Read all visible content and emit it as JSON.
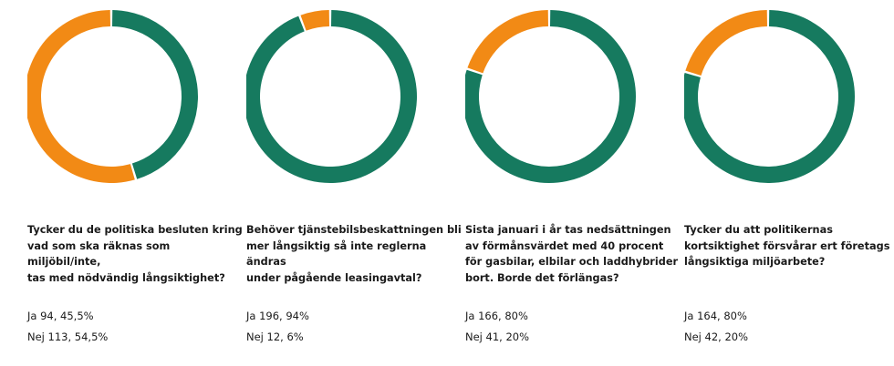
{
  "colors": {
    "ja": "#167a5f",
    "nej": "#f28a15"
  },
  "chart_data": [
    {
      "type": "pie",
      "title": "Tycker du de politiska besluten kring\nvad som ska räknas som miljöbil/inte,\ntas med nödvändig långsiktighet?",
      "labels": [
        "Ja",
        "Nej"
      ],
      "values": [
        94,
        113
      ],
      "percent": [
        45.5,
        54.5
      ],
      "answer_lines": [
        "Ja 94, 45,5%",
        "Nej 113, 54,5%"
      ]
    },
    {
      "type": "pie",
      "title": "Behöver tjänstebilsbeskattningen bli\nmer långsiktig så inte reglerna ändras\nunder pågående leasingavtal?",
      "labels": [
        "Ja",
        "Nej"
      ],
      "values": [
        196,
        12
      ],
      "percent": [
        94,
        6
      ],
      "answer_lines": [
        "Ja 196, 94%",
        "Nej 12, 6%"
      ]
    },
    {
      "type": "pie",
      "title": "Sista januari i år tas nedsättningen\nav förmånsvärdet med 40 procent\nför gasbilar, elbilar och laddhybrider\nbort. Borde det förlängas?",
      "labels": [
        "Ja",
        "Nej"
      ],
      "values": [
        166,
        41
      ],
      "percent": [
        80,
        20
      ],
      "answer_lines": [
        "Ja 166, 80%",
        "Nej 41, 20%"
      ]
    },
    {
      "type": "pie",
      "title": "Tycker du att politikernas\nkortsiktighet försvårar ert företags\nlångsiktiga miljöarbete?",
      "labels": [
        "Ja",
        "Nej"
      ],
      "values": [
        164,
        42
      ],
      "percent": [
        80,
        20
      ],
      "answer_lines": [
        "Ja 164, 80%",
        "Nej 42, 20%"
      ]
    }
  ]
}
